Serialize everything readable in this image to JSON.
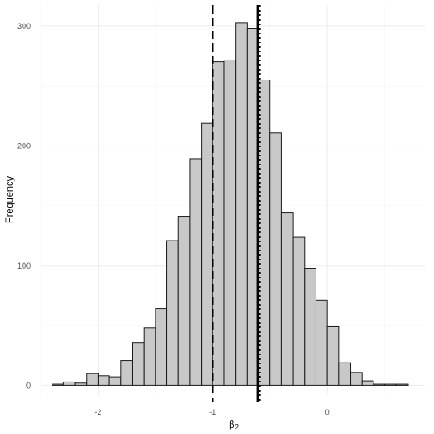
{
  "chart_data": {
    "type": "bar",
    "title": "",
    "ylabel": "Frequency",
    "xlabel": "β2",
    "xlabel_symbol": "β",
    "xlabel_subscript": "2",
    "xlim": [
      -2.5,
      0.85
    ],
    "ylim": [
      -8,
      318
    ],
    "x_ticks": [
      -2,
      -1,
      0
    ],
    "x_tick_labels": [
      "-2",
      "-1",
      "0"
    ],
    "y_ticks": [
      0,
      100,
      200,
      300
    ],
    "y_tick_labels": [
      "0",
      "100",
      "200",
      "300"
    ],
    "bin_width": 0.1,
    "bins": [
      {
        "x0": -2.4,
        "x1": -2.3,
        "count": 1
      },
      {
        "x0": -2.3,
        "x1": -2.2,
        "count": 3
      },
      {
        "x0": -2.2,
        "x1": -2.1,
        "count": 2
      },
      {
        "x0": -2.1,
        "x1": -2.0,
        "count": 10
      },
      {
        "x0": -2.0,
        "x1": -1.9,
        "count": 8
      },
      {
        "x0": -1.9,
        "x1": -1.8,
        "count": 7
      },
      {
        "x0": -1.8,
        "x1": -1.7,
        "count": 21
      },
      {
        "x0": -1.7,
        "x1": -1.6,
        "count": 36
      },
      {
        "x0": -1.6,
        "x1": -1.5,
        "count": 48
      },
      {
        "x0": -1.5,
        "x1": -1.4,
        "count": 64
      },
      {
        "x0": -1.4,
        "x1": -1.3,
        "count": 121
      },
      {
        "x0": -1.3,
        "x1": -1.2,
        "count": 141
      },
      {
        "x0": -1.2,
        "x1": -1.1,
        "count": 189
      },
      {
        "x0": -1.1,
        "x1": -1.0,
        "count": 219
      },
      {
        "x0": -1.0,
        "x1": -0.9,
        "count": 270
      },
      {
        "x0": -0.9,
        "x1": -0.8,
        "count": 271
      },
      {
        "x0": -0.8,
        "x1": -0.7,
        "count": 303
      },
      {
        "x0": -0.7,
        "x1": -0.6,
        "count": 298
      },
      {
        "x0": -0.6,
        "x1": -0.5,
        "count": 255
      },
      {
        "x0": -0.5,
        "x1": -0.4,
        "count": 211
      },
      {
        "x0": -0.4,
        "x1": -0.3,
        "count": 144
      },
      {
        "x0": -0.3,
        "x1": -0.2,
        "count": 124
      },
      {
        "x0": -0.2,
        "x1": -0.1,
        "count": 98
      },
      {
        "x0": -0.1,
        "x1": 0.0,
        "count": 71
      },
      {
        "x0": 0.0,
        "x1": 0.1,
        "count": 49
      },
      {
        "x0": 0.1,
        "x1": 0.2,
        "count": 19
      },
      {
        "x0": 0.2,
        "x1": 0.3,
        "count": 11
      },
      {
        "x0": 0.3,
        "x1": 0.4,
        "count": 4
      },
      {
        "x0": 0.4,
        "x1": 0.5,
        "count": 1
      },
      {
        "x0": 0.5,
        "x1": 0.6,
        "count": 1
      },
      {
        "x0": 0.6,
        "x1": 0.7,
        "count": 1
      }
    ],
    "reference_lines": [
      {
        "x": -1.0,
        "style": "dashed"
      },
      {
        "x": -0.61,
        "style": "solid"
      },
      {
        "x": -0.59,
        "style": "dotted"
      }
    ],
    "grid": true,
    "legend": "none",
    "colors": {
      "bar_fill": "#c8c8c8",
      "bar_stroke": "#1a1a1a",
      "grid_major": "#ebebeb",
      "grid_minor": "#f5f5f5",
      "reference_line": "#000000"
    }
  }
}
